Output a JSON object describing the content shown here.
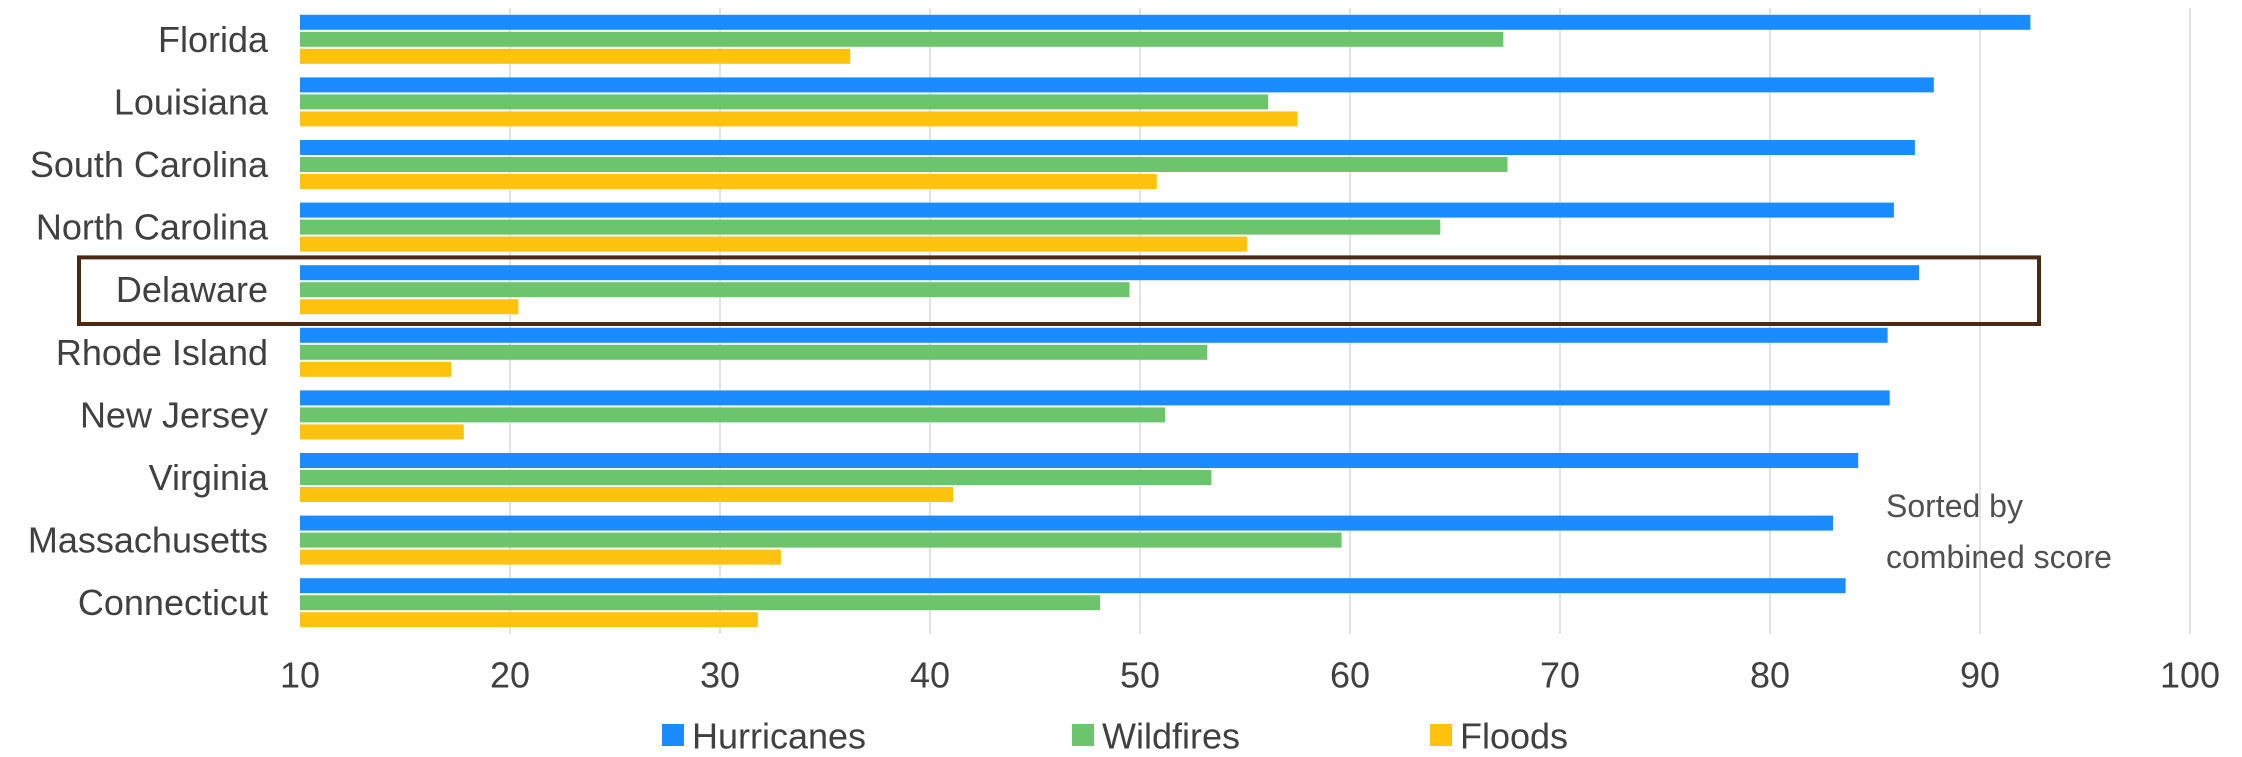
{
  "chart_data": {
    "type": "bar",
    "orientation": "horizontal",
    "categories": [
      "Florida",
      "Louisiana",
      "South Carolina",
      "North Carolina",
      "Delaware",
      "Rhode Island",
      "New Jersey",
      "Virginia",
      "Massachusetts",
      "Connecticut"
    ],
    "series": [
      {
        "name": "Hurricanes",
        "color": "#1a8cff",
        "values": [
          92.4,
          87.8,
          86.9,
          85.9,
          87.1,
          85.6,
          85.7,
          84.2,
          83.0,
          83.6
        ]
      },
      {
        "name": "Wildfires",
        "color": "#6cc46c",
        "values": [
          67.3,
          56.1,
          67.5,
          64.3,
          49.5,
          53.2,
          51.2,
          53.4,
          59.6,
          48.1
        ]
      },
      {
        "name": "Floods",
        "color": "#ffc20e",
        "values": [
          36.2,
          57.5,
          50.8,
          55.1,
          20.4,
          17.2,
          17.8,
          41.1,
          32.9,
          31.8
        ]
      }
    ],
    "xlim": [
      10,
      100
    ],
    "xticks": [
      10,
      20,
      30,
      40,
      50,
      60,
      70,
      80,
      90,
      100
    ],
    "grid": true,
    "legend": "bottom",
    "highlight_category": "Delaware",
    "highlight_color": "#4a2a14",
    "annotation": [
      "Sorted by",
      "combined score"
    ]
  }
}
